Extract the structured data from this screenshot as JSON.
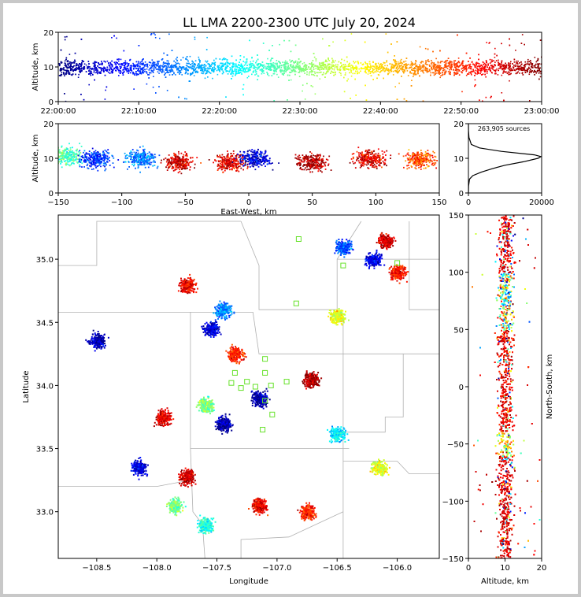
{
  "chart_data": [
    {
      "type": "scatter",
      "panel": "altitude-vs-time",
      "title": "LL LMA 2200-2300 UTC July 20, 2024",
      "xlabel": "",
      "ylabel": "Altitude, km",
      "x_ticks": [
        "22:00:00",
        "22:10:00",
        "22:20:00",
        "22:30:00",
        "22:40:00",
        "22:50:00",
        "23:00:00"
      ],
      "xlim": [
        "22:00:00",
        "23:00:00"
      ],
      "ylim": [
        0,
        20
      ],
      "y_ticks": [
        0,
        10,
        20
      ],
      "color_encoding": "time (blue early to dark red late)",
      "band_altitude_km": [
        4,
        16
      ],
      "band_core_altitude_km": 10
    },
    {
      "type": "scatter",
      "panel": "altitude-vs-east-west",
      "xlabel": "East-West, km",
      "ylabel": "Altitude, km",
      "xlim": [
        -150,
        150
      ],
      "x_ticks": [
        -150,
        -100,
        -50,
        0,
        50,
        100,
        150
      ],
      "ylim": [
        0,
        20
      ],
      "y_ticks": [
        0,
        10,
        20
      ],
      "clusters": [
        {
          "x_center": -145,
          "altitude": 11,
          "time_fraction": 0.45
        },
        {
          "x_center": -120,
          "altitude": 10,
          "time_fraction": 0.18
        },
        {
          "x_center": -85,
          "altitude": 10,
          "time_fraction": 0.25
        },
        {
          "x_center": -55,
          "altitude": 9,
          "time_fraction": 0.92
        },
        {
          "x_center": -15,
          "altitude": 9,
          "time_fraction": 0.9
        },
        {
          "x_center": 5,
          "altitude": 10,
          "time_fraction": 0.1
        },
        {
          "x_center": 50,
          "altitude": 9,
          "time_fraction": 0.95
        },
        {
          "x_center": 95,
          "altitude": 10,
          "time_fraction": 0.9
        },
        {
          "x_center": 135,
          "altitude": 10,
          "time_fraction": 0.8
        }
      ]
    },
    {
      "type": "line",
      "panel": "altitude-histogram",
      "annotation": "263,905 sources",
      "xlim": [
        0,
        20000
      ],
      "x_ticks": [
        0,
        20000
      ],
      "ylim": [
        0,
        20
      ],
      "y_ticks": [
        0,
        10,
        20
      ],
      "altitude_km": [
        0,
        2,
        4,
        5,
        6,
        7,
        8,
        9,
        10,
        10.5,
        11,
        12,
        13,
        14,
        16,
        18,
        20
      ],
      "source_count": [
        0,
        50,
        300,
        1200,
        3500,
        6500,
        10000,
        15000,
        19000,
        19800,
        18000,
        9000,
        3000,
        800,
        150,
        30,
        0
      ]
    },
    {
      "type": "scatter",
      "panel": "plan-view-map",
      "xlabel": "Longitude",
      "ylabel": "Latitude",
      "xlim": [
        -108.82,
        -105.65
      ],
      "x_ticks": [
        -108.5,
        -108.0,
        -107.5,
        -107.0,
        -106.5,
        -106.0
      ],
      "ylim": [
        32.63,
        35.35
      ],
      "y_ticks": [
        33.0,
        33.5,
        34.0,
        34.5,
        35.0
      ],
      "storms": [
        {
          "lon": -106.1,
          "lat": 35.15,
          "time_fraction": 0.92
        },
        {
          "lon": -106.2,
          "lat": 35.0,
          "time_fraction": 0.1
        },
        {
          "lon": -106.45,
          "lat": 35.1,
          "time_fraction": 0.2
        },
        {
          "lon": -106.0,
          "lat": 34.9,
          "time_fraction": 0.85
        },
        {
          "lon": -107.75,
          "lat": 34.8,
          "time_fraction": 0.88
        },
        {
          "lon": -107.45,
          "lat": 34.6,
          "time_fraction": 0.25
        },
        {
          "lon": -107.55,
          "lat": 34.45,
          "time_fraction": 0.1
        },
        {
          "lon": -108.5,
          "lat": 34.36,
          "time_fraction": 0.05
        },
        {
          "lon": -107.35,
          "lat": 34.25,
          "time_fraction": 0.85
        },
        {
          "lon": -106.72,
          "lat": 34.05,
          "time_fraction": 0.96
        },
        {
          "lon": -107.95,
          "lat": 33.75,
          "time_fraction": 0.9
        },
        {
          "lon": -107.6,
          "lat": 33.85,
          "time_fraction": 0.5
        },
        {
          "lon": -107.45,
          "lat": 33.7,
          "time_fraction": 0.05
        },
        {
          "lon": -107.15,
          "lat": 33.9,
          "time_fraction": 0.05
        },
        {
          "lon": -107.75,
          "lat": 33.28,
          "time_fraction": 0.93
        },
        {
          "lon": -108.15,
          "lat": 33.35,
          "time_fraction": 0.1
        },
        {
          "lon": -107.85,
          "lat": 33.05,
          "time_fraction": 0.5
        },
        {
          "lon": -106.75,
          "lat": 33.0,
          "time_fraction": 0.85
        },
        {
          "lon": -107.15,
          "lat": 33.05,
          "time_fraction": 0.9
        },
        {
          "lon": -106.5,
          "lat": 34.55,
          "time_fraction": 0.6
        },
        {
          "lon": -106.15,
          "lat": 33.35,
          "time_fraction": 0.6
        },
        {
          "lon": -107.6,
          "lat": 32.9,
          "time_fraction": 0.4
        },
        {
          "lon": -106.5,
          "lat": 33.62,
          "time_fraction": 0.35
        }
      ],
      "stations": [
        [
          -106.82,
          35.16
        ],
        [
          -106.45,
          34.95
        ],
        [
          -106.0,
          34.97
        ],
        [
          -106.84,
          34.65
        ],
        [
          -107.1,
          34.21
        ],
        [
          -107.1,
          34.1
        ],
        [
          -107.35,
          34.1
        ],
        [
          -107.25,
          34.03
        ],
        [
          -107.38,
          34.02
        ],
        [
          -107.05,
          34.0
        ],
        [
          -107.18,
          33.99
        ],
        [
          -107.3,
          33.98
        ],
        [
          -106.92,
          34.03
        ],
        [
          -107.1,
          33.88
        ],
        [
          -107.04,
          33.77
        ],
        [
          -107.12,
          33.65
        ]
      ]
    },
    {
      "type": "scatter",
      "panel": "north-south-vs-altitude",
      "xlabel": "Altitude, km",
      "ylabel": "North-South, km",
      "xlim": [
        0,
        20
      ],
      "x_ticks": [
        0,
        10,
        20
      ],
      "ylim": [
        -150,
        150
      ],
      "y_ticks": [
        -150,
        -100,
        -50,
        0,
        50,
        100,
        150
      ]
    }
  ]
}
